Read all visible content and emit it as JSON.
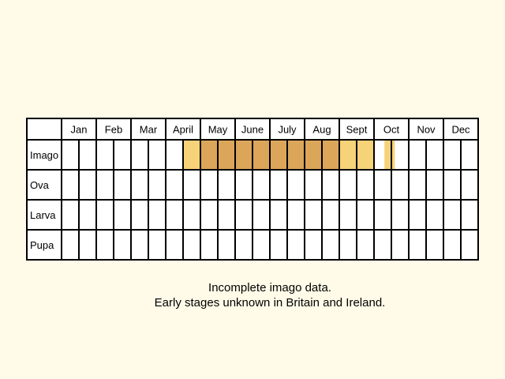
{
  "chart_data": {
    "type": "table",
    "months": [
      "Jan",
      "Feb",
      "Mar",
      "April",
      "May",
      "June",
      "July",
      "Aug",
      "Sept",
      "Oct",
      "Nov",
      "Dec"
    ],
    "stages": [
      "Imago",
      "Ova",
      "Larva",
      "Pupa"
    ],
    "periods_per_month": 2,
    "level_colors": {
      "1": "#f6d278",
      "2": "#dba65a",
      "3": "#f8dca0"
    },
    "levels": {
      "Imago": [
        0,
        0,
        0,
        0,
        0,
        0,
        0,
        0,
        0,
        0,
        0,
        0,
        0,
        0,
        0,
        0,
        0,
        0,
        0,
        0,
        0,
        0,
        0,
        0,
        0,
        0,
        0,
        0,
        0,
        0,
        0,
        0,
        0,
        0,
        0,
        0,
        0,
        0,
        0,
        0,
        0,
        0,
        0,
        0,
        0,
        0,
        0,
        0,
        0,
        0,
        0,
        0,
        0,
        0,
        0,
        0,
        0,
        0,
        0,
        0,
        0,
        0,
        0,
        0,
        0,
        0,
        0,
        0,
        0,
        0,
        0,
        0,
        0,
        0,
        0,
        0,
        0,
        0,
        0,
        0,
        0,
        0,
        0,
        0,
        0,
        0,
        0,
        0,
        0,
        0,
        0,
        0,
        0,
        0,
        0,
        0,
        0,
        0,
        0,
        0,
        0,
        0,
        0,
        0,
        0,
        0,
        0,
        0,
        0,
        0,
        0,
        0,
        0,
        0,
        0,
        0,
        0,
        0,
        0,
        0
      ],
      "Ova": [
        0,
        0,
        0,
        0,
        0,
        0,
        0,
        0,
        0,
        0,
        0,
        0,
        0,
        0,
        0,
        0,
        0,
        0,
        0,
        0,
        0,
        0,
        0,
        0
      ],
      "Larva": [
        0,
        0,
        0,
        0,
        0,
        0,
        0,
        0,
        0,
        0,
        0,
        0,
        0,
        0,
        0,
        0,
        0,
        0,
        0,
        0,
        0,
        0,
        0,
        0
      ],
      "Pupa": [
        0,
        0,
        0,
        0,
        0,
        0,
        0,
        0,
        0,
        0,
        0,
        0,
        0,
        0,
        0,
        0,
        0,
        0,
        0,
        0,
        0,
        0,
        0,
        0
      ]
    },
    "imago_fine": [
      {
        "from": 3.5,
        "to": 3.75,
        "level": 1
      },
      {
        "from": 3.75,
        "to": 4.0,
        "level": 1
      },
      {
        "from": 4.0,
        "to": 4.5,
        "level": 2
      },
      {
        "from": 4.5,
        "to": 8.0,
        "level": 2
      },
      {
        "from": 8.0,
        "to": 9.0,
        "level": 1
      },
      {
        "from": 9.3,
        "to": 9.6,
        "level": 1
      }
    ]
  },
  "captions": [
    "Incomplete imago data.",
    "Early stages unknown in Britain and Ireland."
  ]
}
